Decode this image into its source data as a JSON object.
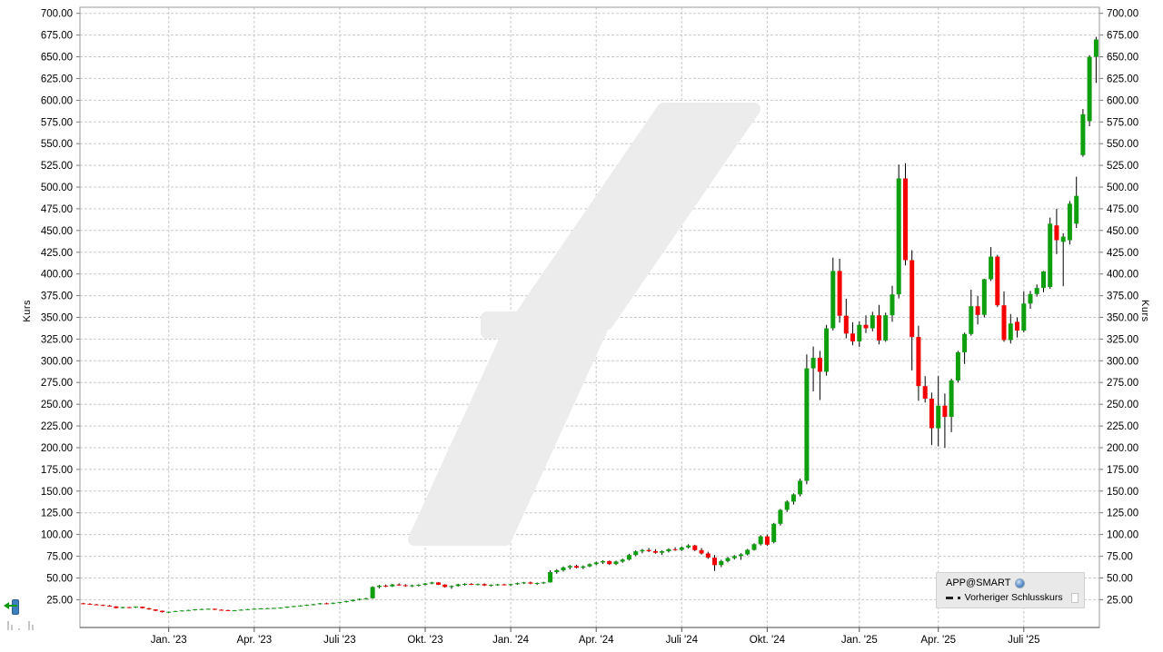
{
  "chart": {
    "legend": {
      "series_label": "APP@SMART",
      "overlay_label": "Vorheriger Schlusskurs"
    },
    "y_axis": {
      "label": "Kurs",
      "tick_min": 25,
      "tick_max": 700,
      "tick_step": 25,
      "decimals": 2
    },
    "x_axis": {
      "ticks": [
        {
          "label": "Jan. '23",
          "i": 13
        },
        {
          "label": "Apr. '23",
          "i": 26
        },
        {
          "label": "Juli '23",
          "i": 39
        },
        {
          "label": "Okt. '23",
          "i": 52
        },
        {
          "label": "Jan. '24",
          "i": 65
        },
        {
          "label": "Apr. '24",
          "i": 78
        },
        {
          "label": "Juli '24",
          "i": 91
        },
        {
          "label": "Okt. '24",
          "i": 104
        },
        {
          "label": "Jan. '25",
          "i": 118
        },
        {
          "label": "Apr. '25",
          "i": 130
        },
        {
          "label": "Juli '25",
          "i": 143
        }
      ]
    }
  },
  "chart_data": {
    "type": "candlestick",
    "title": "APP@SMART",
    "ylabel": "Kurs",
    "ylim": [
      -7,
      707
    ],
    "grid": true,
    "legend_position": "bottom-right",
    "up_color": "#0E9E0E",
    "down_color": "#F40000",
    "wick_color": "#000000",
    "grid_color": "#c9c9c9",
    "watermark_color": "#ececec",
    "ohlc": [
      [
        20.8,
        21.4,
        19.9,
        20.3
      ],
      [
        20.3,
        20.9,
        19.2,
        19.6
      ],
      [
        19.6,
        20.1,
        18.6,
        18.9
      ],
      [
        18.9,
        19.5,
        17.8,
        18.2
      ],
      [
        18.2,
        18.8,
        16.9,
        17.3
      ],
      [
        17.3,
        17.6,
        14.8,
        15.4
      ],
      [
        15.4,
        16.9,
        15.0,
        16.4
      ],
      [
        16.4,
        16.8,
        15.6,
        16.0
      ],
      [
        16.0,
        17.2,
        15.5,
        16.9
      ],
      [
        16.9,
        17.0,
        14.9,
        15.2
      ],
      [
        15.2,
        15.6,
        13.4,
        13.8
      ],
      [
        13.8,
        14.0,
        11.9,
        12.2
      ],
      [
        12.2,
        12.4,
        10.2,
        10.6
      ],
      [
        10.6,
        11.4,
        9.9,
        11.1
      ],
      [
        11.1,
        12.2,
        10.8,
        11.9
      ],
      [
        11.9,
        12.8,
        11.5,
        12.5
      ],
      [
        12.5,
        13.4,
        12.1,
        13.1
      ],
      [
        13.1,
        14.2,
        12.7,
        13.9
      ],
      [
        13.9,
        14.6,
        13.2,
        14.2
      ],
      [
        14.2,
        14.9,
        13.6,
        14.5
      ],
      [
        14.5,
        14.7,
        13.1,
        13.4
      ],
      [
        13.4,
        13.9,
        12.6,
        13.0
      ],
      [
        13.0,
        13.5,
        11.9,
        12.3
      ],
      [
        12.3,
        13.1,
        11.8,
        12.8
      ],
      [
        12.8,
        13.8,
        12.4,
        13.5
      ],
      [
        13.5,
        14.4,
        13.1,
        14.1
      ],
      [
        14.1,
        14.8,
        13.6,
        14.5
      ],
      [
        14.5,
        15.3,
        14.1,
        15.0
      ],
      [
        15.0,
        15.6,
        14.4,
        15.2
      ],
      [
        15.2,
        15.8,
        14.6,
        15.5
      ],
      [
        15.5,
        16.2,
        14.9,
        15.9
      ],
      [
        15.9,
        17.4,
        15.5,
        17.0
      ],
      [
        17.0,
        18.0,
        16.5,
        17.6
      ],
      [
        17.6,
        18.6,
        17.1,
        18.3
      ],
      [
        18.3,
        19.4,
        17.8,
        19.0
      ],
      [
        19.0,
        20.2,
        18.5,
        19.8
      ],
      [
        19.8,
        21.2,
        19.3,
        20.8
      ],
      [
        20.8,
        21.6,
        19.9,
        20.4
      ],
      [
        20.4,
        21.8,
        19.9,
        21.4
      ],
      [
        21.4,
        22.6,
        20.9,
        22.2
      ],
      [
        22.2,
        23.8,
        21.7,
        23.4
      ],
      [
        23.4,
        25.2,
        22.9,
        24.8
      ],
      [
        24.8,
        26.4,
        24.2,
        25.9
      ],
      [
        25.9,
        27.2,
        25.1,
        26.6
      ],
      [
        26.6,
        40.5,
        26.0,
        39.6
      ],
      [
        39.6,
        42.0,
        37.8,
        41.2
      ],
      [
        41.2,
        42.5,
        39.4,
        40.3
      ],
      [
        40.3,
        43.1,
        39.6,
        42.4
      ],
      [
        42.4,
        43.8,
        40.9,
        41.6
      ],
      [
        41.6,
        42.9,
        39.8,
        40.6
      ],
      [
        40.6,
        42.2,
        39.5,
        41.5
      ],
      [
        41.5,
        42.8,
        40.2,
        42.1
      ],
      [
        42.1,
        44.2,
        41.3,
        43.6
      ],
      [
        43.6,
        45.6,
        42.8,
        44.9
      ],
      [
        44.9,
        45.2,
        41.8,
        42.3
      ],
      [
        42.3,
        43.0,
        38.9,
        39.6
      ],
      [
        39.6,
        41.5,
        37.5,
        40.8
      ],
      [
        40.8,
        43.4,
        39.9,
        42.7
      ],
      [
        42.7,
        43.9,
        41.2,
        43.2
      ],
      [
        43.2,
        44.1,
        41.9,
        42.5
      ],
      [
        42.5,
        43.6,
        41.4,
        43.0
      ],
      [
        43.0,
        43.8,
        40.9,
        41.4
      ],
      [
        41.4,
        42.6,
        40.1,
        42.0
      ],
      [
        42.0,
        43.2,
        41.0,
        42.6
      ],
      [
        42.6,
        43.4,
        41.5,
        42.0
      ],
      [
        42.0,
        43.5,
        40.8,
        42.9
      ],
      [
        42.9,
        44.6,
        42.0,
        44.0
      ],
      [
        44.0,
        45.5,
        43.1,
        44.8
      ],
      [
        44.8,
        45.9,
        42.9,
        43.4
      ],
      [
        43.4,
        44.8,
        41.9,
        44.2
      ],
      [
        44.2,
        45.6,
        43.3,
        45.0
      ],
      [
        45.0,
        58.9,
        44.6,
        56.8
      ],
      [
        56.8,
        60.2,
        54.9,
        58.9
      ],
      [
        58.9,
        63.4,
        57.4,
        62.1
      ],
      [
        62.1,
        64.9,
        59.8,
        63.8
      ],
      [
        63.8,
        65.2,
        60.9,
        61.8
      ],
      [
        61.8,
        64.4,
        60.2,
        63.4
      ],
      [
        63.4,
        66.8,
        62.4,
        65.9
      ],
      [
        65.9,
        68.9,
        64.6,
        67.8
      ],
      [
        67.8,
        70.4,
        66.2,
        69.4
      ],
      [
        69.4,
        70.1,
        64.9,
        66.0
      ],
      [
        66.0,
        69.8,
        64.8,
        68.9
      ],
      [
        68.9,
        72.2,
        67.4,
        71.2
      ],
      [
        71.2,
        77.8,
        70.1,
        76.4
      ],
      [
        76.4,
        81.9,
        75.2,
        80.6
      ],
      [
        80.6,
        83.4,
        78.4,
        82.2
      ],
      [
        82.2,
        84.6,
        79.8,
        80.9
      ],
      [
        80.9,
        83.2,
        77.9,
        79.0
      ],
      [
        79.0,
        81.8,
        76.4,
        80.8
      ],
      [
        80.8,
        84.2,
        79.4,
        83.1
      ],
      [
        83.1,
        85.4,
        81.2,
        82.4
      ],
      [
        82.4,
        86.2,
        81.0,
        85.2
      ],
      [
        85.2,
        88.9,
        83.9,
        87.4
      ],
      [
        87.4,
        88.2,
        80.9,
        82.1
      ],
      [
        82.1,
        84.4,
        76.9,
        78.2
      ],
      [
        78.2,
        80.2,
        71.9,
        73.4
      ],
      [
        73.4,
        76.4,
        57.9,
        64.8
      ],
      [
        64.8,
        70.9,
        62.4,
        69.4
      ],
      [
        69.4,
        74.2,
        67.9,
        72.9
      ],
      [
        72.9,
        76.4,
        71.2,
        75.2
      ],
      [
        75.2,
        78.4,
        70.9,
        77.2
      ],
      [
        77.2,
        83.4,
        75.9,
        82.4
      ],
      [
        82.4,
        89.9,
        81.4,
        88.9
      ],
      [
        88.9,
        99.4,
        87.4,
        97.9
      ],
      [
        97.9,
        99.9,
        86.9,
        88.4
      ],
      [
        91.4,
        113.4,
        89.9,
        112.4
      ],
      [
        112.4,
        129.4,
        110.4,
        128.4
      ],
      [
        128.4,
        139.4,
        125.9,
        137.9
      ],
      [
        137.9,
        147.4,
        134.4,
        146.2
      ],
      [
        146.2,
        164.4,
        143.9,
        161.9
      ],
      [
        161.9,
        307.4,
        157.9,
        291.4
      ],
      [
        291.4,
        316.4,
        264.9,
        303.4
      ],
      [
        303.4,
        311.4,
        254.9,
        287.4
      ],
      [
        287.4,
        341.4,
        282.9,
        337.4
      ],
      [
        337.4,
        418.9,
        334.9,
        403.4
      ],
      [
        403.4,
        417.4,
        343.9,
        351.9
      ],
      [
        351.9,
        371.4,
        325.9,
        331.4
      ],
      [
        331.4,
        344.4,
        317.9,
        322.4
      ],
      [
        322.4,
        345.4,
        315.9,
        341.4
      ],
      [
        341.4,
        352.4,
        331.9,
        337.4
      ],
      [
        337.4,
        356.4,
        333.9,
        352.4
      ],
      [
        352.4,
        364.4,
        318.9,
        323.4
      ],
      [
        323.4,
        355.4,
        321.9,
        352.4
      ],
      [
        352.4,
        386.4,
        344.9,
        376.4
      ],
      [
        376.4,
        525.9,
        371.9,
        509.9
      ],
      [
        509.9,
        527.4,
        409.9,
        415.9
      ],
      [
        415.9,
        427.4,
        288.9,
        327.4
      ],
      [
        327.4,
        340.4,
        253.9,
        270.9
      ],
      [
        270.9,
        282.4,
        251.9,
        256.4
      ],
      [
        256.4,
        263.4,
        202.9,
        222.4
      ],
      [
        222.4,
        282.4,
        201.4,
        248.4
      ],
      [
        248.4,
        262.4,
        199.9,
        235.4
      ],
      [
        235.4,
        279.4,
        217.9,
        277.4
      ],
      [
        277.4,
        311.4,
        274.9,
        309.9
      ],
      [
        309.9,
        332.4,
        296.4,
        330.9
      ],
      [
        330.9,
        381.9,
        328.9,
        362.9
      ],
      [
        362.9,
        374.9,
        341.9,
        352.9
      ],
      [
        352.9,
        394.4,
        349.9,
        393.9
      ],
      [
        393.9,
        430.9,
        391.9,
        419.9
      ],
      [
        419.9,
        421.9,
        361.9,
        363.9
      ],
      [
        363.9,
        379.9,
        321.9,
        323.9
      ],
      [
        323.9,
        353.9,
        319.9,
        342.9
      ],
      [
        344.9,
        349.9,
        326.9,
        334.9
      ],
      [
        334.9,
        379.9,
        332.9,
        365.9
      ],
      [
        365.9,
        380.4,
        359.9,
        376.9
      ],
      [
        376.9,
        387.9,
        373.9,
        383.9
      ],
      [
        383.9,
        403.4,
        378.9,
        402.9
      ],
      [
        384.9,
        464.9,
        382.9,
        457.9
      ],
      [
        455.9,
        474.9,
        422.9,
        438.9
      ],
      [
        436.9,
        446.9,
        385.9,
        442.9
      ],
      [
        438.9,
        483.9,
        433.9,
        480.9
      ],
      [
        457.9,
        511.9,
        452.9,
        489.9
      ],
      [
        536.9,
        589.9,
        534.9,
        583.9
      ],
      [
        575.9,
        651.9,
        569.9,
        649.9
      ],
      [
        649.9,
        672.9,
        619.9,
        669.9
      ]
    ]
  }
}
